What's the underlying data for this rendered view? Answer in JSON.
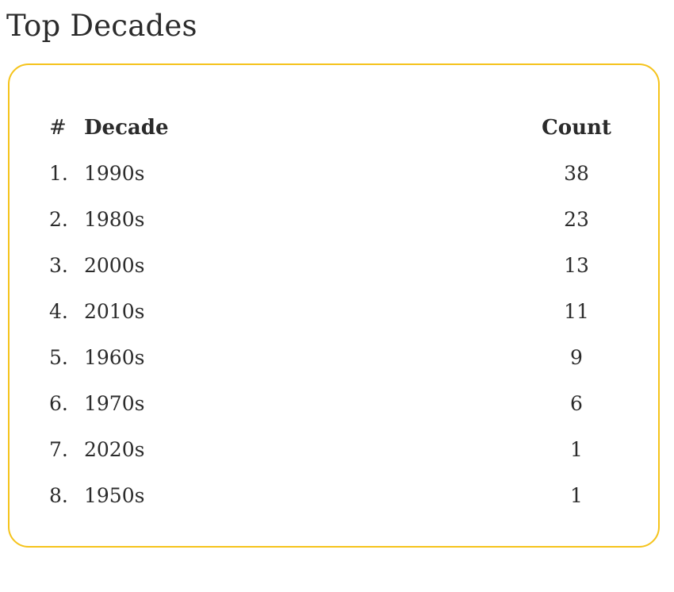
{
  "page": {
    "title": "Top Decades"
  },
  "colors": {
    "card_border": "#F5C31B",
    "text": "#2B2B2B"
  },
  "table": {
    "headers": {
      "rank": "#",
      "decade": "Decade",
      "count": "Count"
    },
    "rows": [
      {
        "rank": "1.",
        "decade": "1990s",
        "count": "38"
      },
      {
        "rank": "2.",
        "decade": "1980s",
        "count": "23"
      },
      {
        "rank": "3.",
        "decade": "2000s",
        "count": "13"
      },
      {
        "rank": "4.",
        "decade": "2010s",
        "count": "11"
      },
      {
        "rank": "5.",
        "decade": "1960s",
        "count": "9"
      },
      {
        "rank": "6.",
        "decade": "1970s",
        "count": "6"
      },
      {
        "rank": "7.",
        "decade": "2020s",
        "count": "1"
      },
      {
        "rank": "8.",
        "decade": "1950s",
        "count": "1"
      }
    ]
  },
  "chart_data": {
    "type": "table",
    "title": "Top Decades",
    "columns": [
      "#",
      "Decade",
      "Count"
    ],
    "categories": [
      "1990s",
      "1980s",
      "2000s",
      "2010s",
      "1960s",
      "1970s",
      "2020s",
      "1950s"
    ],
    "values": [
      38,
      23,
      13,
      11,
      9,
      6,
      1,
      1
    ]
  }
}
